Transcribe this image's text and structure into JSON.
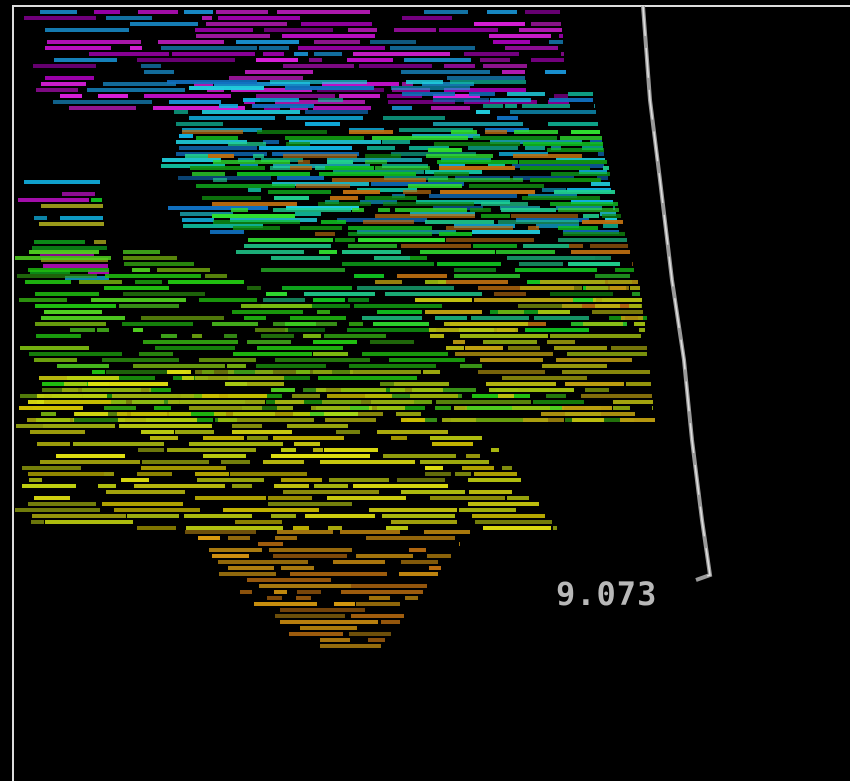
{
  "label": "9.073"
}
